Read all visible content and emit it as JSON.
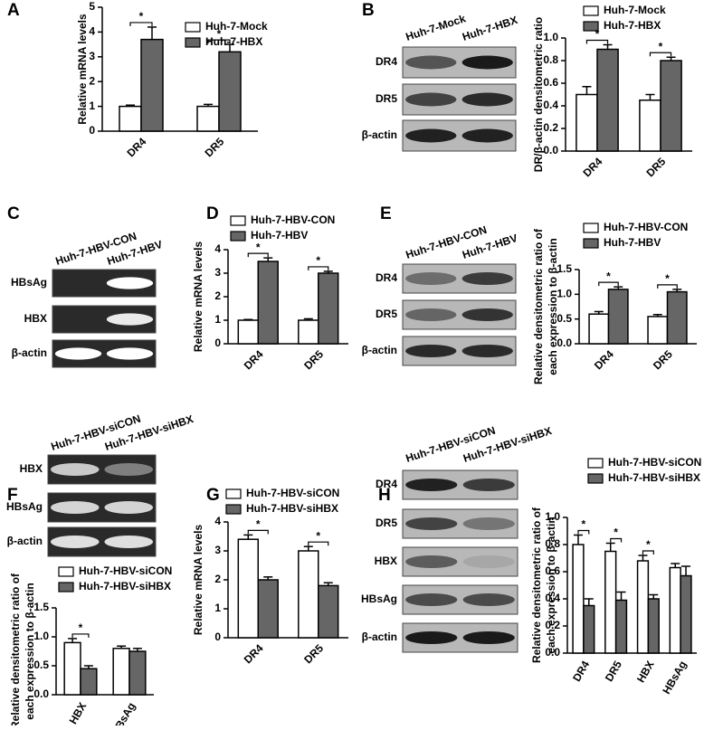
{
  "panel_labels": [
    "A",
    "B",
    "C",
    "D",
    "E",
    "F",
    "G",
    "H"
  ],
  "chart_data": [
    {
      "type": "bar",
      "ylabel": [
        "Relative mRNA levels"
      ],
      "categories": [
        "DR4",
        "DR5"
      ],
      "series": [
        {
          "name": "Huh-7-Mock",
          "color": "#ffffff",
          "values": [
            1.0,
            1.0
          ],
          "errors": [
            0.05,
            0.08
          ]
        },
        {
          "name": "Huh-7-HBX",
          "color": "#666666",
          "values": [
            3.7,
            3.2
          ],
          "errors": [
            0.5,
            0.3
          ]
        }
      ],
      "annotations": [
        "*",
        "*"
      ],
      "ylim": [
        0,
        5
      ],
      "yticks": [
        0,
        1,
        2,
        3,
        4,
        5
      ]
    },
    {
      "type": "bar",
      "ylabel": [
        "DR/β-actin densitometric ratio"
      ],
      "categories": [
        "DR4",
        "DR5"
      ],
      "series": [
        {
          "name": "Huh-7-Mock",
          "color": "#ffffff",
          "values": [
            0.5,
            0.45
          ],
          "errors": [
            0.07,
            0.05
          ]
        },
        {
          "name": "Huh-7-HBX",
          "color": "#666666",
          "values": [
            0.9,
            0.8
          ],
          "errors": [
            0.04,
            0.03
          ]
        }
      ],
      "annotations": [
        "*",
        "*"
      ],
      "ylim": [
        0,
        1.0
      ],
      "yticks": [
        {
          "value": 0,
          "label": "0.0"
        },
        0.2,
        0.4,
        0.6,
        0.8,
        {
          "value": 1,
          "label": "1.0"
        }
      ]
    },
    {
      "type": "bar",
      "ylabel": [
        "Relative mRNA levels"
      ],
      "categories": [
        "DR4",
        "DR5"
      ],
      "series": [
        {
          "name": "Huh-7-HBV-CON",
          "color": "#ffffff",
          "values": [
            1.0,
            1.0
          ],
          "errors": [
            0.03,
            0.06
          ]
        },
        {
          "name": "Huh-7-HBV",
          "color": "#666666",
          "values": [
            3.5,
            3.0
          ],
          "errors": [
            0.15,
            0.08
          ]
        }
      ],
      "annotations": [
        "*",
        "*"
      ],
      "ylim": [
        0,
        4
      ],
      "yticks": [
        0,
        1,
        2,
        3,
        4
      ]
    },
    {
      "type": "bar",
      "ylabel": [
        "Relative densitometric ratio of",
        "each expression to β-actin"
      ],
      "categories": [
        "DR4",
        "DR5"
      ],
      "series": [
        {
          "name": "Huh-7-HBV-CON",
          "color": "#ffffff",
          "values": [
            0.6,
            0.55
          ],
          "errors": [
            0.05,
            0.04
          ]
        },
        {
          "name": "Huh-7-HBV",
          "color": "#666666",
          "values": [
            1.1,
            1.05
          ],
          "errors": [
            0.05,
            0.05
          ]
        }
      ],
      "annotations": [
        "*",
        "*"
      ],
      "ylim": [
        0,
        1.5
      ],
      "yticks": [
        {
          "value": 0,
          "label": "0.0"
        },
        0.5,
        {
          "value": 1,
          "label": "1.0"
        },
        1.5
      ]
    },
    {
      "type": "bar",
      "ylabel": [
        "Relative densitometric ratio of",
        "each expression to β-actin"
      ],
      "categories": [
        "HBX",
        "HBsAg"
      ],
      "series": [
        {
          "name": "Huh-7-HBV-siCON",
          "color": "#ffffff",
          "values": [
            0.9,
            0.8
          ],
          "errors": [
            0.07,
            0.04
          ]
        },
        {
          "name": "Huh-7-HBV-siHBX",
          "color": "#666666",
          "values": [
            0.45,
            0.75
          ],
          "errors": [
            0.05,
            0.05
          ]
        }
      ],
      "annotations": [
        "*",
        null
      ],
      "ylim": [
        0,
        1.5
      ],
      "yticks": [
        {
          "value": 0,
          "label": "0.0"
        },
        0.5,
        {
          "value": 1,
          "label": "1.0"
        },
        1.5
      ]
    },
    {
      "type": "bar",
      "ylabel": [
        "Relative mRNA levels"
      ],
      "categories": [
        "DR4",
        "DR5"
      ],
      "series": [
        {
          "name": "Huh-7-HBV-siCON",
          "color": "#ffffff",
          "values": [
            3.4,
            3.0
          ],
          "errors": [
            0.15,
            0.15
          ]
        },
        {
          "name": "Huh-7-HBV-siHBX",
          "color": "#666666",
          "values": [
            2.0,
            1.8
          ],
          "errors": [
            0.1,
            0.1
          ]
        }
      ],
      "annotations": [
        "*",
        "*"
      ],
      "ylim": [
        0,
        4
      ],
      "yticks": [
        0,
        1,
        2,
        3,
        4
      ]
    },
    {
      "type": "bar",
      "ylabel": [
        "Relative densitometric ratio of",
        "each expression to β-actin"
      ],
      "categories": [
        "DR4",
        "DR5",
        "HBX",
        "HBsAg"
      ],
      "series": [
        {
          "name": "Huh-7-HBV-siCON",
          "color": "#ffffff",
          "values": [
            0.8,
            0.75,
            0.68,
            0.63
          ],
          "errors": [
            0.07,
            0.06,
            0.04,
            0.03
          ]
        },
        {
          "name": "Huh-7-HBV-siHBX",
          "color": "#666666",
          "values": [
            0.35,
            0.39,
            0.4,
            0.57
          ],
          "errors": [
            0.05,
            0.06,
            0.03,
            0.07
          ]
        }
      ],
      "annotations": [
        "*",
        "*",
        "*",
        null
      ],
      "ylim": [
        0,
        1.0
      ],
      "yticks": [
        {
          "value": 0,
          "label": "0.0"
        },
        0.2,
        0.4,
        0.6,
        0.8,
        {
          "value": 1,
          "label": "1.0"
        }
      ]
    }
  ],
  "blots": [
    {
      "columns": [
        "Huh-7-Mock",
        "Huh-7-HBX"
      ],
      "rows": [
        "DR4",
        "DR5",
        "β-actin"
      ]
    },
    {
      "columns": [
        "Huh-7-HBV-CON",
        "Huh-7-HBV"
      ],
      "rows": [
        "HBsAg",
        "HBX",
        "β-actin"
      ]
    },
    {
      "columns": [
        "Huh-7-HBV-CON",
        "Huh-7-HBV"
      ],
      "rows": [
        "DR4",
        "DR5",
        "β-actin"
      ]
    },
    {
      "columns": [
        "Huh-7-HBV-siCON",
        "Huh-7-HBV-siHBX"
      ],
      "rows": [
        "HBX",
        "HBsAg",
        "β-actin"
      ]
    },
    {
      "columns": [
        "Huh-7-HBV-siCON",
        "Huh-7-HBV-siHBX"
      ],
      "rows": [
        "DR4",
        "DR5",
        "HBX",
        "HBsAg",
        "β-actin"
      ]
    }
  ]
}
